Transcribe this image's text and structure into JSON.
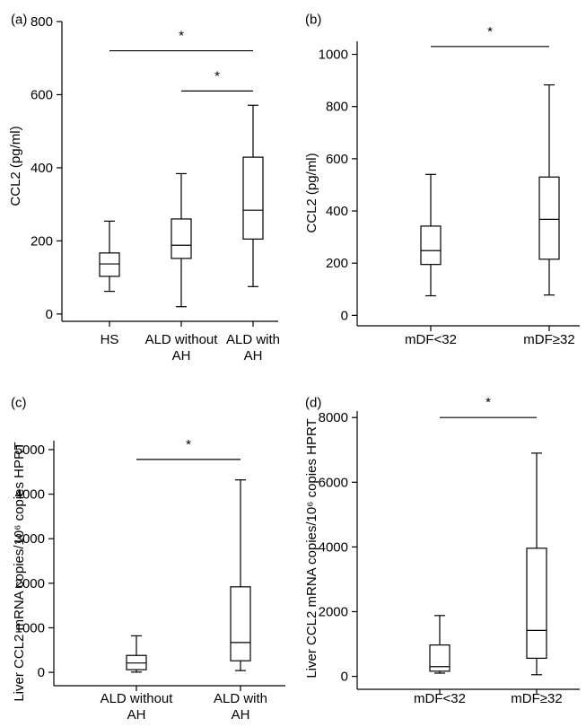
{
  "chart_data": [
    {
      "type": "box",
      "panel_label": "(a)",
      "ylabel": "CCL2 (pg/ml)",
      "ylim": [
        -20,
        800
      ],
      "yticks": [
        "0",
        "200",
        "400",
        "600",
        "800"
      ],
      "categories": [
        "HS",
        "ALD without AH",
        "ALD with AH"
      ],
      "category_lines": [
        [
          "HS"
        ],
        [
          "ALD without",
          "AH"
        ],
        [
          "ALD with",
          "AH"
        ]
      ],
      "boxes": [
        {
          "min": 62,
          "q1": 103,
          "median": 137,
          "q3": 167,
          "max": 254
        },
        {
          "min": 20,
          "q1": 152,
          "median": 188,
          "q3": 260,
          "max": 384
        },
        {
          "min": 75,
          "q1": 205,
          "median": 284,
          "q3": 429,
          "max": 571
        }
      ],
      "significance": [
        {
          "from": 0,
          "to": 2,
          "y": 720,
          "label": "*"
        },
        {
          "from": 1,
          "to": 2,
          "y": 610,
          "label": "*"
        }
      ]
    },
    {
      "type": "box",
      "panel_label": "(b)",
      "ylabel": "CCL2 (pg/ml)",
      "ylim": [
        -40,
        1050
      ],
      "yticks": [
        "0",
        "200",
        "400",
        "600",
        "800",
        "1000"
      ],
      "categories": [
        "mDF<32",
        "mDF≥32"
      ],
      "category_lines": [
        [
          "mDF<32"
        ],
        [
          "mDF≥32"
        ]
      ],
      "boxes": [
        {
          "min": 75,
          "q1": 195,
          "median": 248,
          "q3": 342,
          "max": 540
        },
        {
          "min": 78,
          "q1": 215,
          "median": 368,
          "q3": 530,
          "max": 883
        }
      ],
      "significance": [
        {
          "from": 0,
          "to": 1,
          "y": 1030,
          "label": "*"
        }
      ]
    },
    {
      "type": "box",
      "panel_label": "(c)",
      "ylabel": "Liver CCL2 mRNA copies/10⁶ copies HPRT",
      "ylim": [
        -300,
        5200
      ],
      "yticks": [
        "0",
        "1000",
        "2000",
        "3000",
        "4000",
        "5000"
      ],
      "categories": [
        "ALD without AH",
        "ALD with AH"
      ],
      "category_lines": [
        [
          "ALD without",
          "AH"
        ],
        [
          "ALD with",
          "AH"
        ]
      ],
      "boxes": [
        {
          "min": 5,
          "q1": 60,
          "median": 210,
          "q3": 380,
          "max": 820
        },
        {
          "min": 40,
          "q1": 260,
          "median": 670,
          "q3": 1920,
          "max": 4320
        }
      ],
      "significance": [
        {
          "from": 0,
          "to": 1,
          "y": 4780,
          "label": "*"
        }
      ]
    },
    {
      "type": "box",
      "panel_label": "(d)",
      "ylabel": "Liver CCL2 mRNA copies/10⁶ copies HPRT",
      "ylim": [
        -400,
        8200
      ],
      "yticks": [
        "0",
        "2000",
        "4000",
        "6000",
        "8000"
      ],
      "categories": [
        "mDF<32",
        "mDF≥32"
      ],
      "category_lines": [
        [
          "mDF<32"
        ],
        [
          "mDF≥32"
        ]
      ],
      "boxes": [
        {
          "min": 100,
          "q1": 160,
          "median": 300,
          "q3": 970,
          "max": 1880
        },
        {
          "min": 50,
          "q1": 560,
          "median": 1420,
          "q3": 3960,
          "max": 6900
        }
      ],
      "significance": [
        {
          "from": 0,
          "to": 1,
          "y": 8000,
          "label": "*"
        }
      ]
    }
  ]
}
